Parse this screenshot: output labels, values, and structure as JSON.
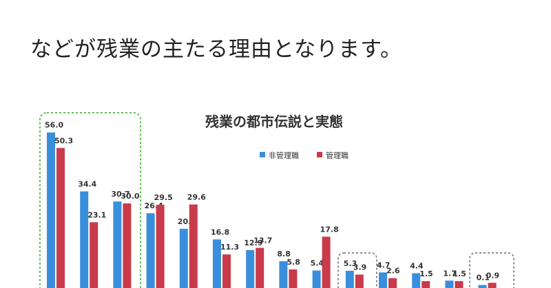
{
  "heading": "などが残業の主たる理由となります。",
  "chart_data": {
    "type": "bar",
    "title": "残業の都市伝説と実態",
    "ylim": [
      0,
      60
    ],
    "legend_position": "top-center",
    "series": [
      {
        "name": "非管理職",
        "color": "#3a8fdc",
        "values": [
          56.0,
          34.4,
          30.7,
          26.4,
          20.7,
          16.8,
          12.9,
          8.8,
          5.4,
          5.3,
          4.7,
          4.4,
          1.7,
          0.1
        ]
      },
      {
        "name": "管理職",
        "color": "#c93a4a",
        "values": [
          50.3,
          23.1,
          30.0,
          29.5,
          29.6,
          11.3,
          13.7,
          5.8,
          17.8,
          3.9,
          2.6,
          1.5,
          1.5,
          0.9
        ]
      }
    ],
    "value_labels": [
      [
        "56.0",
        "50.3"
      ],
      [
        "34.4",
        "23.1"
      ],
      [
        "30.7",
        "30.0"
      ],
      [
        "26.4",
        "29.5"
      ],
      [
        "20.7",
        "29.6"
      ],
      [
        "16.8",
        "11.3"
      ],
      [
        "12.9",
        "13.7"
      ],
      [
        "8.8",
        "5.8"
      ],
      [
        "5.4",
        "17.8"
      ],
      [
        "5.3",
        "3.9"
      ],
      [
        "4.7",
        "2.6"
      ],
      [
        "4.4",
        "1.5"
      ],
      [
        "1.7",
        "1.5"
      ],
      [
        "0.1",
        "0.9"
      ]
    ],
    "highlight_colors": {
      "green": "#5cbf4f",
      "gray": "#8a8a8a"
    }
  }
}
